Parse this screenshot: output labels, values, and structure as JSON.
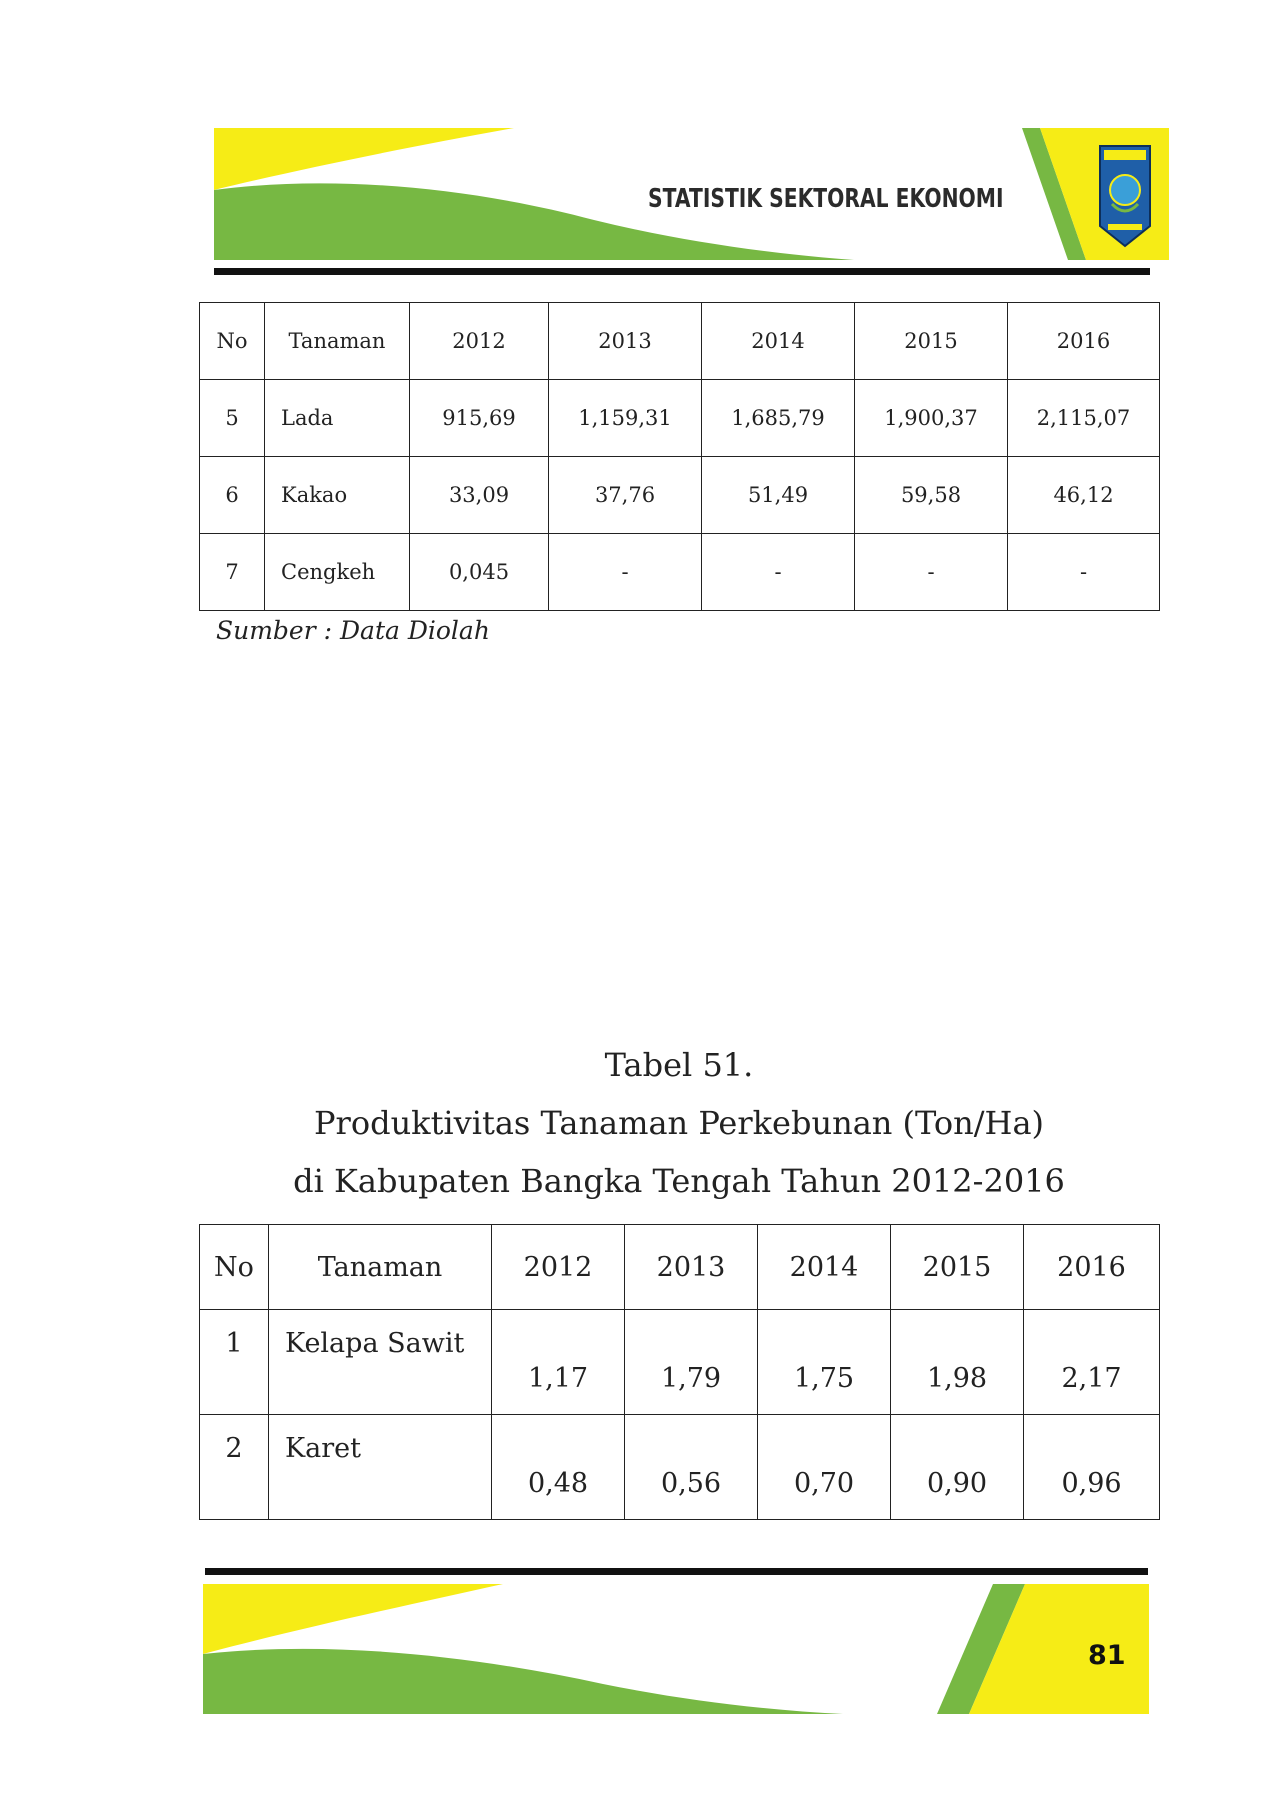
{
  "header": {
    "title": "STATISTIK SEKTORAL EKONOMI"
  },
  "colors": {
    "yellow": "#f6ec16",
    "green": "#77b843",
    "dark": "#111111"
  },
  "table_top": {
    "headers": [
      "No",
      "Tanaman",
      "2012",
      "2013",
      "2014",
      "2015",
      "2016"
    ],
    "rows": [
      [
        "5",
        "Lada",
        "915,69",
        "1,159,31",
        "1,685,79",
        "1,900,37",
        "2,115,07"
      ],
      [
        "6",
        "Kakao",
        "33,09",
        "37,76",
        "51,49",
        "59,58",
        "46,12"
      ],
      [
        "7",
        "Cengkeh",
        "0,045",
        "-",
        "-",
        "-",
        "-"
      ]
    ]
  },
  "source_note": "Sumber : Data Diolah",
  "caption": {
    "line1": "Tabel 51.",
    "line2": "Produktivitas Tanaman Perkebunan (Ton/Ha)",
    "line3": "di Kabupaten Bangka Tengah Tahun 2012-2016"
  },
  "table_bottom": {
    "headers": [
      "No",
      "Tanaman",
      "2012",
      "2013",
      "2014",
      "2015",
      "2016"
    ],
    "rows": [
      [
        "1",
        "Kelapa Sawit",
        "1,17",
        "1,79",
        "1,75",
        "1,98",
        "2,17"
      ],
      [
        "2",
        "Karet",
        "0,48",
        "0,56",
        "0,70",
        "0,90",
        "0,96"
      ]
    ]
  },
  "footer": {
    "page_number": "81"
  }
}
